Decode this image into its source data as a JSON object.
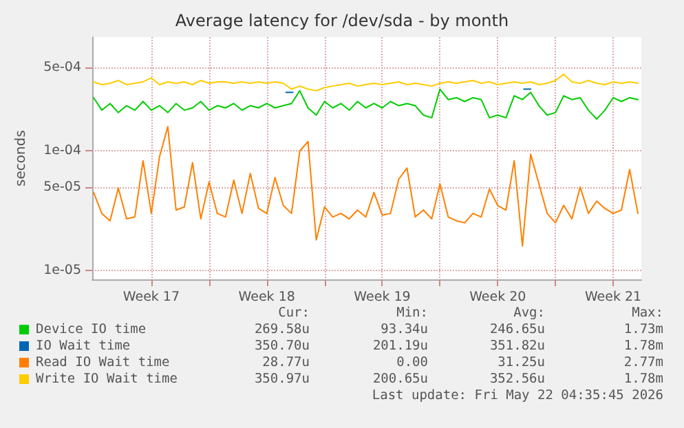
{
  "chart_data": {
    "type": "line",
    "title": "Average latency for /dev/sda - by month",
    "ylabel": "seconds",
    "log": true,
    "grid": true,
    "legend": "bottom",
    "marker": "none",
    "line_style": "solid",
    "xlim": [
      "2026-04-18T22:00",
      "2026-05-22T05:00"
    ],
    "xticks": [
      {
        "value": "2026-04-22T12:00",
        "label": "Week 17"
      },
      {
        "value": "2026-04-26T00:00",
        "label": null
      },
      {
        "value": "2026-04-29T12:00",
        "label": "Week 18"
      },
      {
        "value": "2026-05-03T00:00",
        "label": null
      },
      {
        "value": "2026-05-06T12:00",
        "label": "Week 19"
      },
      {
        "value": "2026-05-10T00:00",
        "label": null
      },
      {
        "value": "2026-05-13T12:00",
        "label": "Week 20"
      },
      {
        "value": "2026-05-17T00:00",
        "label": null
      },
      {
        "value": "2026-05-20T12:00",
        "label": "Week 21"
      }
    ],
    "ylim": [
      8.4e-06,
      0.0009
    ],
    "yticks": [
      {
        "value": 1e-05,
        "label": "1e-05"
      },
      {
        "value": 5e-05,
        "label": "5e-05"
      },
      {
        "value": 0.0001,
        "label": "1e-04"
      },
      {
        "value": 0.0005,
        "label": "5e-04"
      }
    ],
    "x": [
      "2026-04-19T00:00",
      "2026-04-19T12:00",
      "2026-04-20T00:00",
      "2026-04-20T12:00",
      "2026-04-21T00:00",
      "2026-04-21T12:00",
      "2026-04-22T00:00",
      "2026-04-22T12:00",
      "2026-04-23T00:00",
      "2026-04-23T12:00",
      "2026-04-24T00:00",
      "2026-04-24T12:00",
      "2026-04-25T00:00",
      "2026-04-25T12:00",
      "2026-04-26T00:00",
      "2026-04-26T12:00",
      "2026-04-27T00:00",
      "2026-04-27T12:00",
      "2026-04-28T00:00",
      "2026-04-28T12:00",
      "2026-04-29T00:00",
      "2026-04-29T12:00",
      "2026-04-30T00:00",
      "2026-04-30T12:00",
      "2026-05-01T00:00",
      "2026-05-01T12:00",
      "2026-05-02T00:00",
      "2026-05-02T12:00",
      "2026-05-03T00:00",
      "2026-05-03T12:00",
      "2026-05-04T00:00",
      "2026-05-04T12:00",
      "2026-05-05T00:00",
      "2026-05-05T12:00",
      "2026-05-06T00:00",
      "2026-05-06T12:00",
      "2026-05-07T00:00",
      "2026-05-07T12:00",
      "2026-05-08T00:00",
      "2026-05-08T12:00",
      "2026-05-09T00:00",
      "2026-05-09T12:00",
      "2026-05-10T00:00",
      "2026-05-10T12:00",
      "2026-05-11T00:00",
      "2026-05-11T12:00",
      "2026-05-12T00:00",
      "2026-05-12T12:00",
      "2026-05-13T00:00",
      "2026-05-13T12:00",
      "2026-05-14T00:00",
      "2026-05-14T12:00",
      "2026-05-15T00:00",
      "2026-05-15T12:00",
      "2026-05-16T00:00",
      "2026-05-16T12:00",
      "2026-05-17T00:00",
      "2026-05-17T12:00",
      "2026-05-18T00:00",
      "2026-05-18T12:00",
      "2026-05-19T00:00",
      "2026-05-19T12:00",
      "2026-05-20T00:00",
      "2026-05-20T12:00",
      "2026-05-21T00:00",
      "2026-05-21T12:00",
      "2026-05-22T00:00"
    ],
    "series": [
      {
        "name": "Device IO time",
        "color": "#00cc00",
        "values": [
          0.00028,
          0.00022,
          0.00025,
          0.00021,
          0.00024,
          0.00022,
          0.00026,
          0.00022,
          0.00024,
          0.00021,
          0.00025,
          0.00022,
          0.00023,
          0.00026,
          0.00022,
          0.00024,
          0.00023,
          0.00025,
          0.00022,
          0.00024,
          0.00023,
          0.00025,
          0.00023,
          0.00024,
          0.00025,
          0.00032,
          0.00023,
          0.0002,
          0.00026,
          0.00023,
          0.00025,
          0.00022,
          0.00026,
          0.00023,
          0.00025,
          0.00023,
          0.00026,
          0.00024,
          0.00025,
          0.00024,
          0.0002,
          0.00019,
          0.00033,
          0.00027,
          0.00028,
          0.00026,
          0.00028,
          0.00027,
          0.00019,
          0.0002,
          0.00019,
          0.00029,
          0.00027,
          0.00031,
          0.00024,
          0.0002,
          0.00021,
          0.00029,
          0.00027,
          0.00028,
          0.00022,
          0.000185,
          0.00022,
          0.00028,
          0.00026,
          0.00028,
          0.00027
        ]
      },
      {
        "name": "IO Wait time",
        "color": "#0066b3",
        "x": [
          "2026-04-30T16:00",
          "2026-05-01T02:00",
          "2026-05-08T00:00",
          "2026-05-15T02:00",
          "2026-05-15T12:00"
        ],
        "values": [
          0.00031,
          0.00031,
          null,
          0.00033,
          0.00033
        ]
      },
      {
        "name": "Read IO Wait time",
        "color": "#ff8000",
        "values": [
          4.5e-05,
          3e-05,
          2.6e-05,
          4.9e-05,
          2.7e-05,
          2.8e-05,
          8.3e-05,
          3e-05,
          9e-05,
          0.00016,
          3.2e-05,
          3.4e-05,
          8e-05,
          2.7e-05,
          5.5e-05,
          3e-05,
          2.8e-05,
          5.7e-05,
          3e-05,
          6.5e-05,
          3.3e-05,
          3e-05,
          6e-05,
          3.5e-05,
          3e-05,
          0.0001,
          0.00012,
          1.8e-05,
          3.4e-05,
          2.8e-05,
          3e-05,
          2.7e-05,
          3.2e-05,
          2.8e-05,
          4.5e-05,
          2.9e-05,
          3e-05,
          5.8e-05,
          7.2e-05,
          2.8e-05,
          3.2e-05,
          2.7e-05,
          5.3e-05,
          2.8e-05,
          2.6e-05,
          2.5e-05,
          3e-05,
          2.8e-05,
          4.8e-05,
          3.5e-05,
          3.2e-05,
          8.3e-05,
          1.6e-05,
          9.4e-05,
          5.3e-05,
          3e-05,
          2.5e-05,
          3.5e-05,
          2.7e-05,
          5e-05,
          3e-05,
          3.8e-05,
          3.3e-05,
          3e-05,
          3.2e-05,
          7e-05,
          3e-05
        ]
      },
      {
        "name": "Write IO Wait time",
        "color": "#ffcc00",
        "values": [
          0.00038,
          0.00036,
          0.00037,
          0.00039,
          0.00036,
          0.00037,
          0.00038,
          0.00041,
          0.00036,
          0.00038,
          0.00037,
          0.00038,
          0.00036,
          0.00039,
          0.00037,
          0.00038,
          0.00038,
          0.00037,
          0.00038,
          0.00037,
          0.00038,
          0.00037,
          0.00038,
          0.00037,
          0.00033,
          0.00035,
          0.00033,
          0.00032,
          0.00034,
          0.00035,
          0.00036,
          0.00037,
          0.00035,
          0.00036,
          0.00037,
          0.00036,
          0.00037,
          0.00038,
          0.00036,
          0.00037,
          0.00036,
          0.00035,
          0.00037,
          0.00038,
          0.00037,
          0.00038,
          0.00039,
          0.00037,
          0.00038,
          0.00036,
          0.00037,
          0.00038,
          0.00037,
          0.00038,
          0.00036,
          0.00037,
          0.00039,
          0.00044,
          0.00038,
          0.00037,
          0.00039,
          0.00037,
          0.00036,
          0.00038,
          0.00037,
          0.00038,
          0.00037
        ]
      }
    ],
    "annotations": [
      "Cur:",
      "Min:",
      "Avg:",
      "Max:",
      "269.58u",
      "93.34u",
      "246.65u",
      "1.73m",
      "350.70u",
      "201.19u",
      "351.82u",
      "1.78m",
      "28.77u",
      "0.00",
      "31.25u",
      "2.77m",
      "350.97u",
      "200.65u",
      "352.56u",
      "1.78m",
      "Last update: Fri May 22 04:35:45 2026"
    ]
  }
}
